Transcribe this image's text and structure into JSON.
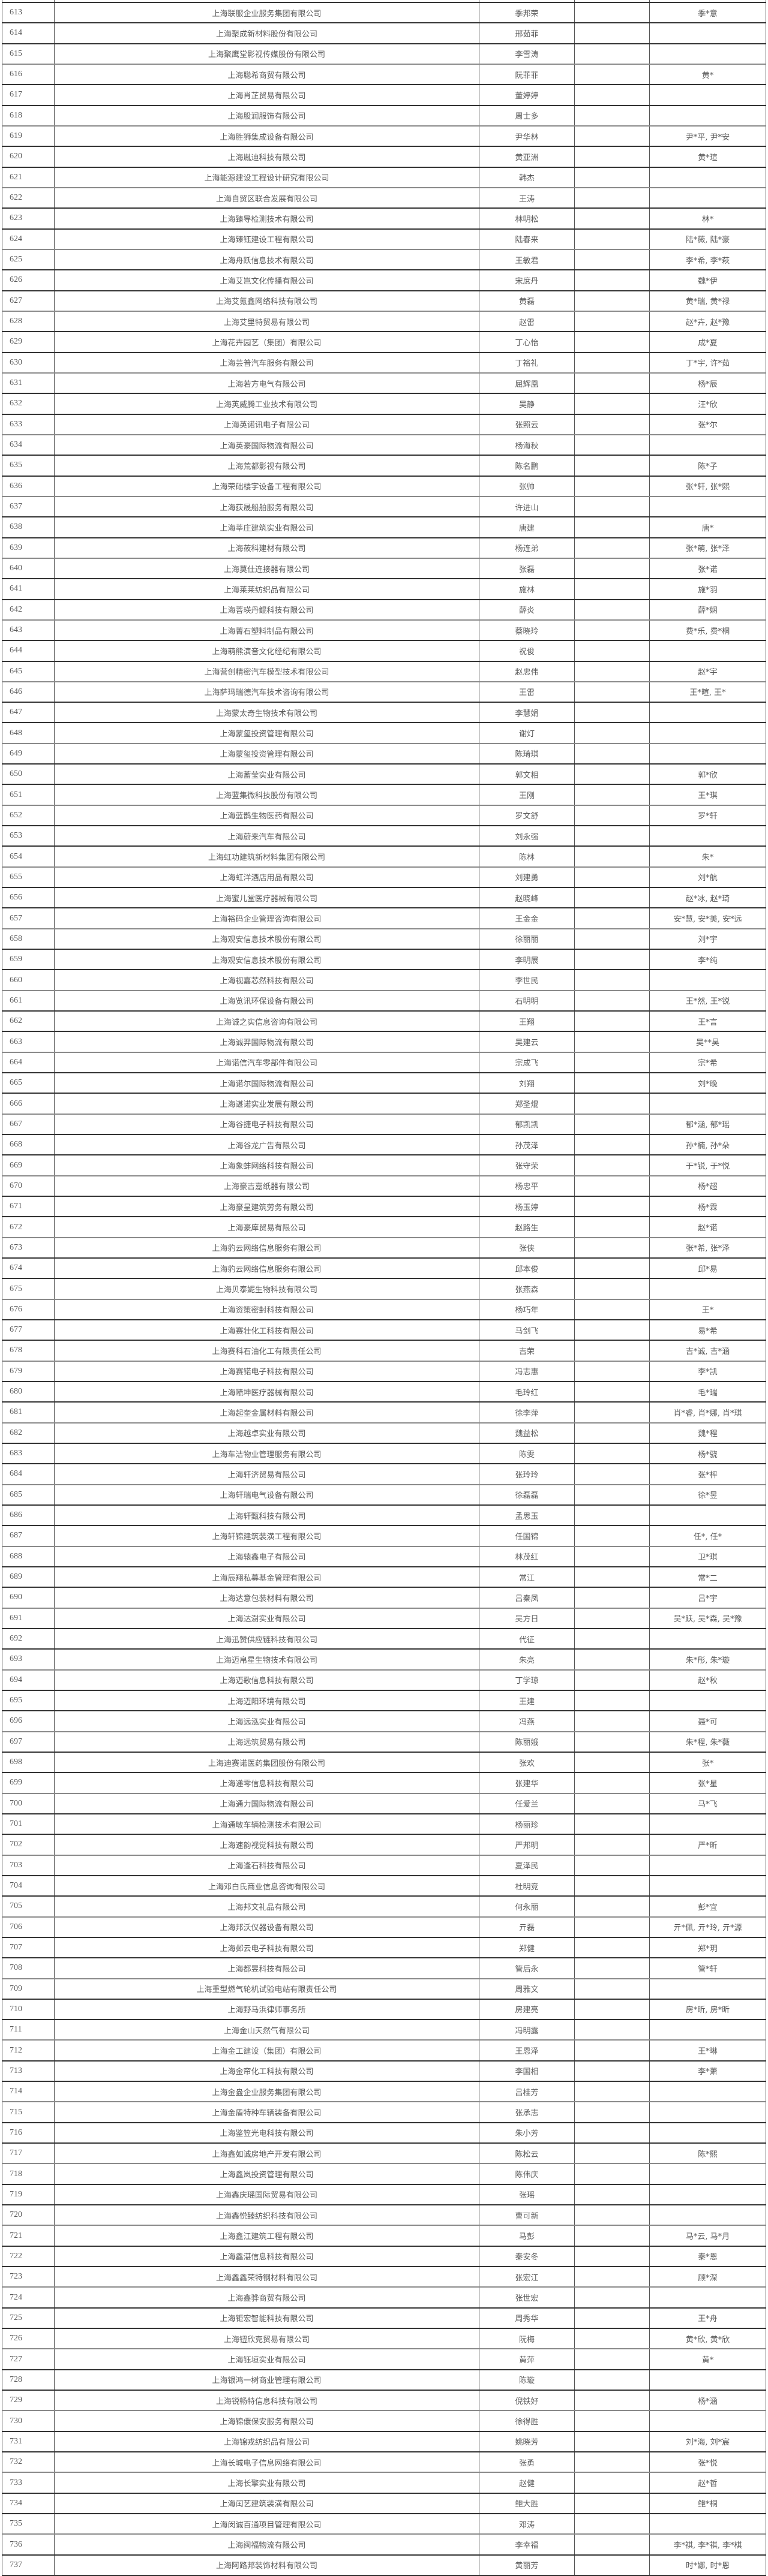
{
  "table": {
    "rows": [
      [
        "613",
        "上海联服企业服务集团有限公司",
        "季邦荣",
        "季*意"
      ],
      [
        "614",
        "上海聚成新材料股份有限公司",
        "邢茹菲",
        ""
      ],
      [
        "615",
        "上海聚鹰堂影视传媒股份有限公司",
        "李雪涛",
        ""
      ],
      [
        "616",
        "上海聪希商贸有限公司",
        "阮菲菲",
        "黄*"
      ],
      [
        "617",
        "上海肖芷贸易有限公司",
        "董婷婷",
        ""
      ],
      [
        "618",
        "上海股润服饰有限公司",
        "周士多",
        ""
      ],
      [
        "619",
        "上海胜狮集成设备有限公司",
        "尹华林",
        "尹*平, 尹*安"
      ],
      [
        "620",
        "上海胤迪科技有限公司",
        "黄亚洲",
        "黄*瑄"
      ],
      [
        "621",
        "上海能源建设工程设计研究有限公司",
        "韩杰",
        ""
      ],
      [
        "622",
        "上海自贸区联合发展有限公司",
        "王涛",
        ""
      ],
      [
        "623",
        "上海臻导检测技术有限公司",
        "林明松",
        "林*"
      ],
      [
        "624",
        "上海臻钰建设工程有限公司",
        "陆春来",
        "陆*薇, 陆*豪"
      ],
      [
        "625",
        "上海舟跃信息技术有限公司",
        "王敏君",
        "李*希, 李*萩"
      ],
      [
        "626",
        "上海艾岂文化传播有限公司",
        "宋庶丹",
        "魏*伊"
      ],
      [
        "627",
        "上海艾氪鑫网络科技有限公司",
        "黄磊",
        "黄*瑞, 黄*禄"
      ],
      [
        "628",
        "上海艾里特贸易有限公司",
        "赵雷",
        "赵*卉, 赵*豫"
      ],
      [
        "629",
        "上海花卉园艺（集团）有限公司",
        "丁心怡",
        "成*夏"
      ],
      [
        "630",
        "上海芸普汽车服务有限公司",
        "丁裕礼",
        "丁*宇, 许*茹"
      ],
      [
        "631",
        "上海若方电气有限公司",
        "屈辉凰",
        "杨*辰"
      ],
      [
        "632",
        "上海英威腾工业技术有限公司",
        "吴静",
        "汪*欣"
      ],
      [
        "633",
        "上海英诺讯电子有限公司",
        "张照云",
        "张*尔"
      ],
      [
        "634",
        "上海英豪国际物流有限公司",
        "杨海秋",
        ""
      ],
      [
        "635",
        "上海荒都影视有限公司",
        "陈名鹏",
        "陈*子"
      ],
      [
        "636",
        "上海荣础楼宇设备工程有限公司",
        "张帅",
        "张*轩, 张*熙"
      ],
      [
        "637",
        "上海荻晟船舶服务有限公司",
        "许进山",
        ""
      ],
      [
        "638",
        "上海莘庄建筑实业有限公司",
        "唐建",
        "唐*"
      ],
      [
        "639",
        "上海莜科建材有限公司",
        "杨连弟",
        "张*萌, 张*泽"
      ],
      [
        "640",
        "上海莫仕连接器有限公司",
        "张磊",
        "张*诺"
      ],
      [
        "641",
        "上海莱莱纺织品有限公司",
        "施林",
        "施*羽"
      ],
      [
        "642",
        "上海菩瑛丹鲲科技有限公司",
        "薛炎",
        "薛*娴"
      ],
      [
        "643",
        "上海菁石塑料制品有限公司",
        "蔡晓玲",
        "费*乐, 费*桐"
      ],
      [
        "644",
        "上海萌熊演音文化经纪有限公司",
        "祝俊",
        ""
      ],
      [
        "645",
        "上海营创精密汽车模型技术有限公司",
        "赵忠伟",
        "赵*宇"
      ],
      [
        "646",
        "上海萨玛瑞德汽车技术咨询有限公司",
        "王雷",
        "王*暄, 王*"
      ],
      [
        "647",
        "上海蒙太奇生物技术有限公司",
        "李慧娟",
        ""
      ],
      [
        "648",
        "上海蒙玺投资管理有限公司",
        "谢灯",
        ""
      ],
      [
        "649",
        "上海蒙玺投资管理有限公司",
        "陈琦琪",
        ""
      ],
      [
        "650",
        "上海蓄莹实业有限公司",
        "郭文相",
        "郭*欣"
      ],
      [
        "651",
        "上海蓝集微科技股份有限公司",
        "王刚",
        "王*琪"
      ],
      [
        "652",
        "上海蓝鹊生物医药有限公司",
        "罗文舒",
        "罗*轩"
      ],
      [
        "653",
        "上海蔚来汽车有限公司",
        "刘永强",
        ""
      ],
      [
        "654",
        "上海虹功建筑新材料集团有限公司",
        "陈林",
        "朱*"
      ],
      [
        "655",
        "上海虹洋酒店用品有限公司",
        "刘建勇",
        "刘*航"
      ],
      [
        "656",
        "上海蜜儿堂医疗器械有限公司",
        "赵晓峰",
        "赵*冰, 赵*琦"
      ],
      [
        "657",
        "上海裕码企业管理咨询有限公司",
        "王金金",
        "安*慧, 安*美, 安*远"
      ],
      [
        "658",
        "上海观安信息技术股份有限公司",
        "徐丽丽",
        "刘*宇"
      ],
      [
        "659",
        "上海观安信息技术股份有限公司",
        "李明展",
        "李*纯"
      ],
      [
        "660",
        "上海视嘉芯然科技有限公司",
        "李世民",
        ""
      ],
      [
        "661",
        "上海览讯环保设备有限公司",
        "石明明",
        "王*然, 王*锐"
      ],
      [
        "662",
        "上海诚之实信息咨询有限公司",
        "王翔",
        "王*言"
      ],
      [
        "663",
        "上海诚羿国际物流有限公司",
        "吴建云",
        "吴**昊"
      ],
      [
        "664",
        "上海诺信汽车零部件有限公司",
        "宗成飞",
        "宗*希"
      ],
      [
        "665",
        "上海诺尔国际物流有限公司",
        "刘翔",
        "刘*晚"
      ],
      [
        "666",
        "上海谌诺实业发展有限公司",
        "郑圣焜",
        ""
      ],
      [
        "667",
        "上海谷捷电子科技有限公司",
        "郁凯凯",
        "郁*涵, 郁*瑶"
      ],
      [
        "668",
        "上海谷龙广告有限公司",
        "孙茂泽",
        "孙*楠, 孙*朵"
      ],
      [
        "669",
        "上海象蚌网络科技有限公司",
        "张守荣",
        "于*锐, 于*悦"
      ],
      [
        "670",
        "上海豪吉嘉纸器有限公司",
        "杨忠平",
        "杨*超"
      ],
      [
        "671",
        "上海豪呈建筑劳务有限公司",
        "杨玉婷",
        "杨*霖"
      ],
      [
        "672",
        "上海豪庠贸易有限公司",
        "赵路生",
        "赵*诺"
      ],
      [
        "673",
        "上海豹云网络信息服务有限公司",
        "张侠",
        "张*希, 张*泽"
      ],
      [
        "674",
        "上海豹云网络信息服务有限公司",
        "邱本俊",
        "邱*易"
      ],
      [
        "675",
        "上海贝泰妮生物科技有限公司",
        "张燕森",
        ""
      ],
      [
        "676",
        "上海资策密封科技有限公司",
        "杨巧年",
        "王*"
      ],
      [
        "677",
        "上海赛壮化工科技有限公司",
        "马剑飞",
        "易*希"
      ],
      [
        "678",
        "上海赛科石油化工有限责任公司",
        "吉荣",
        "吉*诚, 吉*涵"
      ],
      [
        "679",
        "上海赛锘电子科技有限公司",
        "冯志惠",
        "李*凯"
      ],
      [
        "680",
        "上海赜坤医疗器械有限公司",
        "毛玲红",
        "毛*瑞"
      ],
      [
        "681",
        "上海起奎金属材料有限公司",
        "徐李萍",
        "肖*睿, 肖*娜, 肖*琪"
      ],
      [
        "682",
        "上海越卓实业有限公司",
        "魏益松",
        "魏*程"
      ],
      [
        "683",
        "上海车洁物业管理服务有限公司",
        "陈雯",
        "杨*骁"
      ],
      [
        "684",
        "上海轩济贸易有限公司",
        "张玲玲",
        "张*枰"
      ],
      [
        "685",
        "上海轩瑞电气设备有限公司",
        "徐磊磊",
        "徐*昱"
      ],
      [
        "686",
        "上海轩甄科技有限公司",
        "孟思玉",
        ""
      ],
      [
        "687",
        "上海轩锦建筑装潢工程有限公司",
        "任国锦",
        "任*, 任*"
      ],
      [
        "688",
        "上海辕鑫电子有限公司",
        "林茂红",
        "卫*琪"
      ],
      [
        "689",
        "上海辰翔私募基金管理有限公司",
        "常江",
        "常*二"
      ],
      [
        "690",
        "上海达意包装材料有限公司",
        "吕秦凤",
        "吕*宇"
      ],
      [
        "691",
        "上海达澍实业有限公司",
        "吴方日",
        "吴*跃, 吴*森, 吴*豫"
      ],
      [
        "692",
        "上海迅赞供应链科技有限公司",
        "代征",
        ""
      ],
      [
        "693",
        "上海迈帛星生物技术有限公司",
        "朱亮",
        "朱*彤, 朱*璇"
      ],
      [
        "694",
        "上海迈歌信息科技有限公司",
        "丁学琼",
        "赵*秋"
      ],
      [
        "695",
        "上海迈阳环境有限公司",
        "王建",
        ""
      ],
      [
        "696",
        "上海远泓实业有限公司",
        "冯燕",
        "聂*可"
      ],
      [
        "697",
        "上海远筑贸易有限公司",
        "陈丽娥",
        "朱*程, 朱*薇"
      ],
      [
        "698",
        "上海迪赛诺医药集团股份有限公司",
        "张欢",
        "张*"
      ],
      [
        "699",
        "上海递零信息科技有限公司",
        "张建华",
        "张*星"
      ],
      [
        "700",
        "上海通力国际物流有限公司",
        "任爱兰",
        "马*飞"
      ],
      [
        "701",
        "上海通敏车辆检测技术有限公司",
        "杨丽珍",
        ""
      ],
      [
        "702",
        "上海速韵视觉科技有限公司",
        "严邦明",
        "严*昕"
      ],
      [
        "703",
        "上海逢石科技有限公司",
        "夏泽民",
        ""
      ],
      [
        "704",
        "上海邓白氏商业信息咨询有限公司",
        "杜明竞",
        ""
      ],
      [
        "705",
        "上海邦文礼品有限公司",
        "何永丽",
        "彭*宜"
      ],
      [
        "706",
        "上海邦沃仪器设备有限公司",
        "亓磊",
        "亓*佩, 亓*玲, 亓*源"
      ],
      [
        "707",
        "上海邺云电子科技有限公司",
        "郑健",
        "郑*玥"
      ],
      [
        "708",
        "上海都昱科技有限公司",
        "管后永",
        "管*轩"
      ],
      [
        "709",
        "上海重型燃气轮机试验电站有限责任公司",
        "周雅文",
        ""
      ],
      [
        "710",
        "上海野马浜律师事务所",
        "房建亮",
        "房*昕, 房*昕"
      ],
      [
        "711",
        "上海金山天然气有限公司",
        "冯明露",
        ""
      ],
      [
        "712",
        "上海金工建设（集团）有限公司",
        "王恩泽",
        "王*琳"
      ],
      [
        "713",
        "上海金帘化工科技有限公司",
        "李国相",
        "李*萧"
      ],
      [
        "714",
        "上海金盎企业服务集团有限公司",
        "吕桂芳",
        ""
      ],
      [
        "715",
        "上海金盾特种车辆装备有限公司",
        "张承志",
        ""
      ],
      [
        "716",
        "上海鉴笠光电科技有限公司",
        "朱小芳",
        ""
      ],
      [
        "717",
        "上海鑫如诚房地产开发有限公司",
        "陈松云",
        "陈*熙"
      ],
      [
        "718",
        "上海鑫岚投资管理有限公司",
        "陈伟庆",
        ""
      ],
      [
        "719",
        "上海鑫庆瑶国际贸易有限公司",
        "张瑶",
        ""
      ],
      [
        "720",
        "上海鑫悦臻纺织科技有限公司",
        "曹可新",
        ""
      ],
      [
        "721",
        "上海鑫江建筑工程有限公司",
        "马彭",
        "马*云, 马*月"
      ],
      [
        "722",
        "上海鑫湛信息科技有限公司",
        "秦安冬",
        "秦*恩"
      ],
      [
        "723",
        "上海鑫鑫荣特钢材料有限公司",
        "张宏江",
        "顾*深"
      ],
      [
        "724",
        "上海鑫骅商贸有限公司",
        "张世宏",
        ""
      ],
      [
        "725",
        "上海钜宏智能科技有限公司",
        "周秀华",
        "王*舟"
      ],
      [
        "726",
        "上海钮欣克贸易有限公司",
        "阮梅",
        "黄*欣, 黄*欣"
      ],
      [
        "727",
        "上海钰垣实业有限公司",
        "黄萍",
        "黄*"
      ],
      [
        "728",
        "上海银鸿一树商业管理有限公司",
        "陈璇",
        ""
      ],
      [
        "729",
        "上海锐畅特信息科技有限公司",
        "倪铁好",
        "杨*涵"
      ],
      [
        "730",
        "上海锦儇保安服务有限公司",
        "徐得胜",
        ""
      ],
      [
        "731",
        "上海锦戎纺织品有限公司",
        "姚晓芳",
        "刘*海, 刘*宸"
      ],
      [
        "732",
        "上海长城电子信息网络有限公司",
        "张勇",
        "张*悦"
      ],
      [
        "733",
        "上海长擎实业有限公司",
        "赵健",
        "赵*哲"
      ],
      [
        "734",
        "上海闰艺建筑装潢有限公司",
        "鲍大胜",
        "鲍*桐"
      ],
      [
        "735",
        "上海闵诚百通项目管理有限公司",
        "邓涛",
        ""
      ],
      [
        "736",
        "上海闽福物流有限公司",
        "李幸福",
        "李*祺, 李*祺, 李*棋"
      ],
      [
        "737",
        "上海阿路邦装饰材料有限公司",
        "黄丽芳",
        "时*娜, 时*恩"
      ]
    ]
  }
}
